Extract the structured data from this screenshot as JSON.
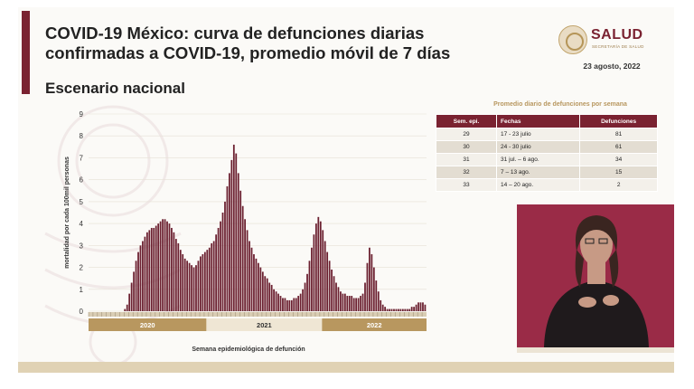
{
  "header": {
    "title_line1": "COVID-19 México: curva de defunciones diarias",
    "title_line2": "confirmadas a COVID-19, promedio móvil de 7 días",
    "subtitle": "Escenario nacional",
    "date": "23 agosto, 2022"
  },
  "logo": {
    "name": "SALUD",
    "sub": "SECRETARÍA DE SALUD"
  },
  "colors": {
    "accent": "#7a2231",
    "gold": "#b8975f",
    "year_band": "#b8975f"
  },
  "chart_data": {
    "type": "bar",
    "ylabel": "mortalidad por cada 100mil personas",
    "xlabel": "Semana epidemiológica de defunción",
    "ylim": [
      0,
      9
    ],
    "yticks": [
      0,
      1,
      2,
      3,
      4,
      5,
      6,
      7,
      8,
      9
    ],
    "year_labels": [
      "2020",
      "2021",
      "2022"
    ],
    "values": [
      0,
      0,
      0,
      0,
      0,
      0,
      0,
      0,
      0,
      0,
      0,
      0,
      0,
      0,
      0,
      0,
      0.1,
      0.3,
      0.8,
      1.3,
      1.8,
      2.3,
      2.7,
      3.0,
      3.2,
      3.4,
      3.6,
      3.7,
      3.8,
      3.8,
      3.9,
      4.0,
      4.1,
      4.2,
      4.2,
      4.1,
      4.0,
      3.8,
      3.6,
      3.3,
      3.1,
      2.8,
      2.6,
      2.4,
      2.3,
      2.2,
      2.1,
      2.0,
      2.1,
      2.3,
      2.5,
      2.6,
      2.7,
      2.8,
      2.9,
      3.1,
      3.2,
      3.5,
      3.8,
      4.1,
      4.5,
      5.0,
      5.7,
      6.3,
      6.9,
      7.6,
      7.2,
      6.3,
      5.5,
      4.8,
      4.2,
      3.7,
      3.2,
      2.9,
      2.6,
      2.4,
      2.2,
      2.0,
      1.8,
      1.6,
      1.5,
      1.3,
      1.2,
      1.0,
      0.9,
      0.8,
      0.7,
      0.6,
      0.6,
      0.5,
      0.5,
      0.5,
      0.6,
      0.6,
      0.7,
      0.8,
      1.0,
      1.3,
      1.7,
      2.3,
      2.9,
      3.5,
      4.0,
      4.3,
      4.1,
      3.7,
      3.2,
      2.7,
      2.3,
      1.9,
      1.6,
      1.3,
      1.1,
      0.9,
      0.8,
      0.8,
      0.7,
      0.7,
      0.7,
      0.6,
      0.6,
      0.6,
      0.7,
      0.8,
      1.3,
      2.2,
      2.9,
      2.6,
      2.0,
      1.4,
      0.9,
      0.5,
      0.3,
      0.2,
      0.1,
      0.1,
      0.1,
      0.1,
      0.1,
      0.1,
      0.1,
      0.1,
      0.1,
      0.1,
      0.1,
      0.2,
      0.2,
      0.3,
      0.4,
      0.4,
      0.4,
      0.3
    ]
  },
  "table": {
    "title": "Promedio diario de defunciones por semana",
    "headers": [
      "Sem. epi.",
      "Fechas",
      "Defunciones"
    ],
    "rows": [
      {
        "week": "29",
        "dates": "17 - 23 julio",
        "deaths": "81"
      },
      {
        "week": "30",
        "dates": "24 - 30 julio",
        "deaths": "61"
      },
      {
        "week": "31",
        "dates": "31 jul. – 6 ago.",
        "deaths": "34"
      },
      {
        "week": "32",
        "dates": "7 – 13 ago.",
        "deaths": "15"
      },
      {
        "week": "33",
        "dates": "14 – 20 ago.",
        "deaths": "2"
      }
    ]
  }
}
